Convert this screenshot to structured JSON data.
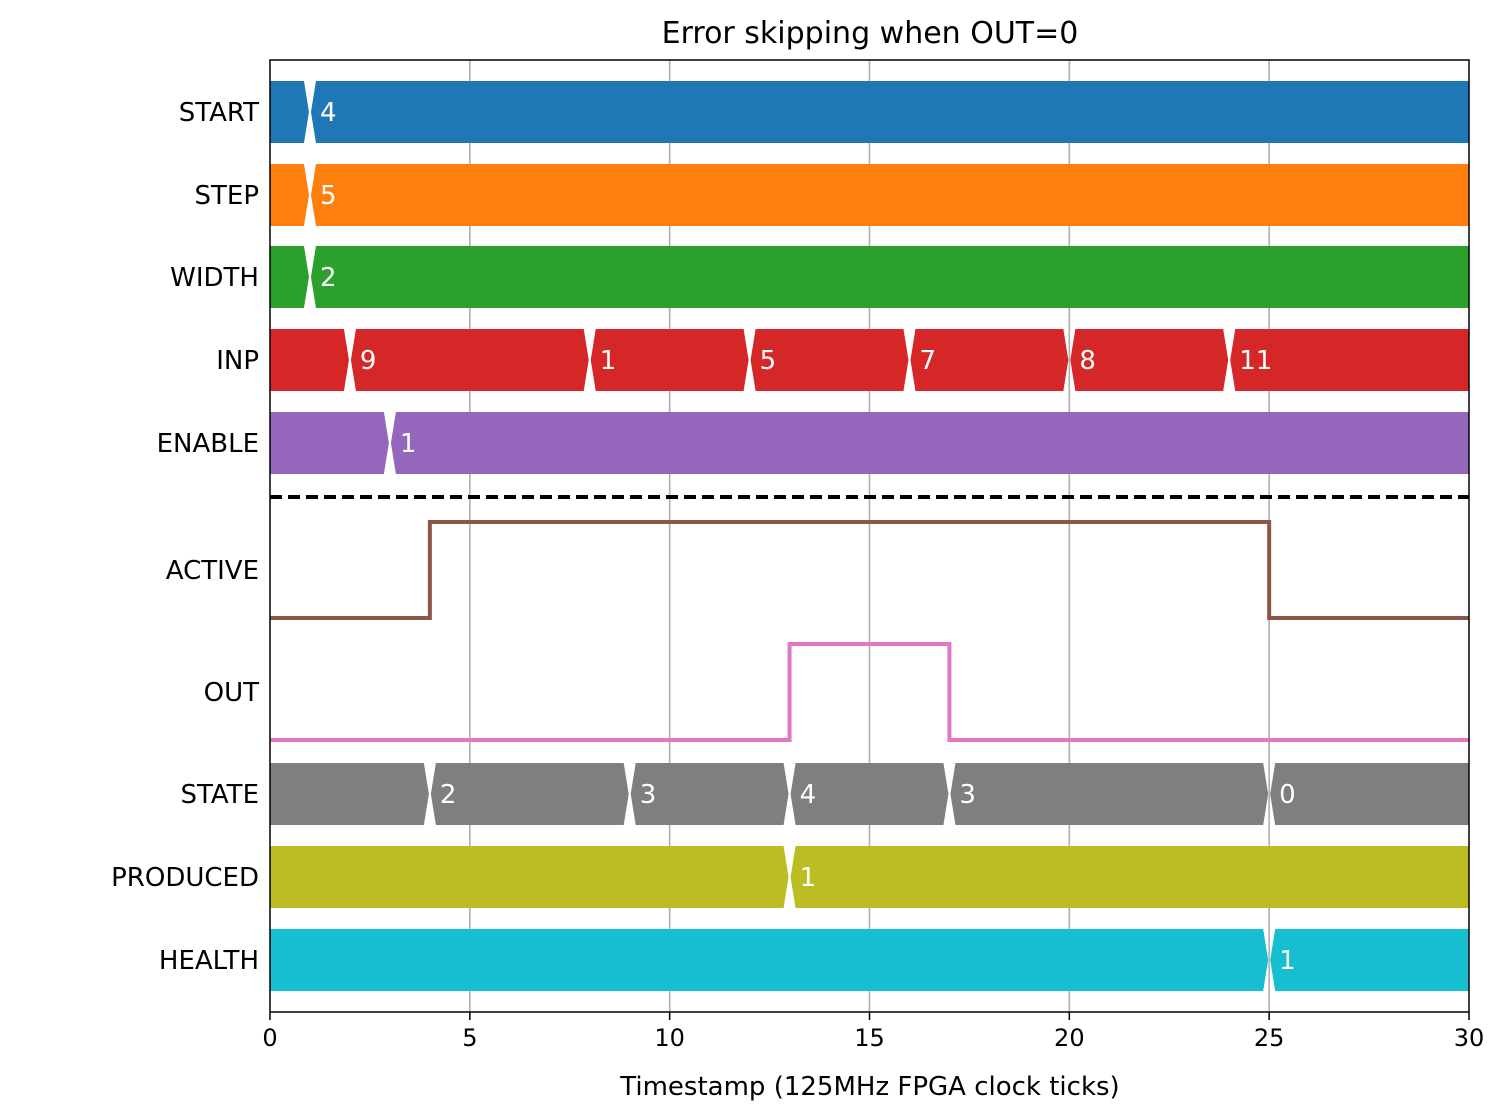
{
  "chart_data": {
    "type": "timing-diagram",
    "title": "Error skipping when OUT=0",
    "xlabel": "Timestamp (125MHz FPGA clock ticks)",
    "xlim": [
      0,
      30
    ],
    "xticks": [
      0,
      5,
      10,
      15,
      20,
      25,
      30
    ],
    "grid": "x",
    "signals": [
      {
        "name": "START",
        "kind": "bus",
        "color": "#1f77b4",
        "transitions": [
          {
            "t": 1,
            "value": "4"
          }
        ]
      },
      {
        "name": "STEP",
        "kind": "bus",
        "color": "#ff7f0e",
        "transitions": [
          {
            "t": 1,
            "value": "5"
          }
        ]
      },
      {
        "name": "WIDTH",
        "kind": "bus",
        "color": "#2ca02c",
        "transitions": [
          {
            "t": 1,
            "value": "2"
          }
        ]
      },
      {
        "name": "INP",
        "kind": "bus",
        "color": "#d62728",
        "transitions": [
          {
            "t": 2,
            "value": "9"
          },
          {
            "t": 8,
            "value": "1"
          },
          {
            "t": 12,
            "value": "5"
          },
          {
            "t": 16,
            "value": "7"
          },
          {
            "t": 20,
            "value": "8"
          },
          {
            "t": 24,
            "value": "11"
          }
        ]
      },
      {
        "name": "ENABLE",
        "kind": "bus",
        "color": "#9467bd",
        "transitions": [
          {
            "t": 3,
            "value": "1"
          }
        ]
      },
      {
        "name": "ACTIVE",
        "kind": "bit",
        "color": "#8c564b",
        "steps": [
          {
            "t": 0,
            "v": 0
          },
          {
            "t": 4,
            "v": 1
          },
          {
            "t": 25,
            "v": 0
          }
        ]
      },
      {
        "name": "OUT",
        "kind": "bit",
        "color": "#e377c2",
        "steps": [
          {
            "t": 0,
            "v": 0
          },
          {
            "t": 13,
            "v": 1
          },
          {
            "t": 17,
            "v": 0
          }
        ]
      },
      {
        "name": "STATE",
        "kind": "bus",
        "color": "#7f7f7f",
        "transitions": [
          {
            "t": 4,
            "value": "2"
          },
          {
            "t": 9,
            "value": "3"
          },
          {
            "t": 13,
            "value": "4"
          },
          {
            "t": 17,
            "value": "3"
          },
          {
            "t": 25,
            "value": "0"
          }
        ]
      },
      {
        "name": "PRODUCED",
        "kind": "bus",
        "color": "#bcbd22",
        "transitions": [
          {
            "t": 13,
            "value": "1"
          }
        ]
      },
      {
        "name": "HEALTH",
        "kind": "bus",
        "color": "#17becf",
        "transitions": [
          {
            "t": 25,
            "value": "1"
          }
        ]
      }
    ],
    "separator_after": "ENABLE"
  }
}
